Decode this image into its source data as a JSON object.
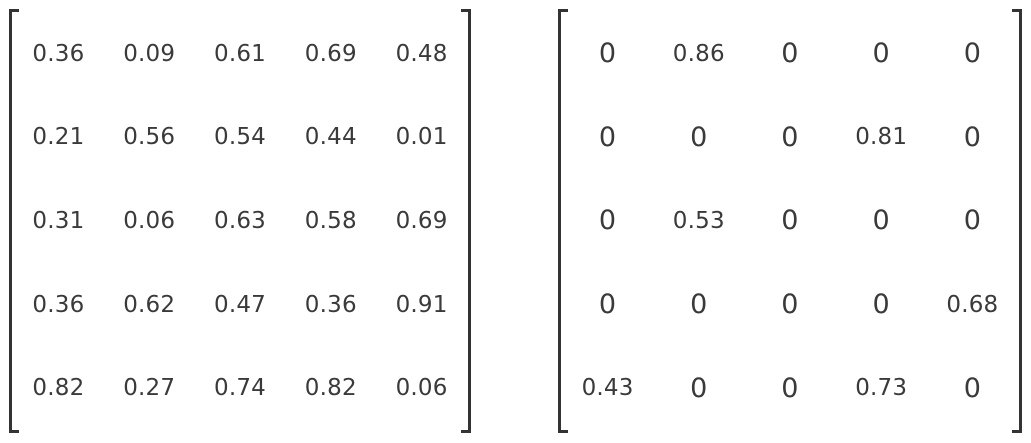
{
  "matrices": [
    {
      "rows": [
        [
          "0.36",
          "0.09",
          "0.61",
          "0.69",
          "0.48"
        ],
        [
          "0.21",
          "0.56",
          "0.54",
          "0.44",
          "0.01"
        ],
        [
          "0.31",
          "0.06",
          "0.63",
          "0.58",
          "0.69"
        ],
        [
          "0.36",
          "0.62",
          "0.47",
          "0.36",
          "0.91"
        ],
        [
          "0.82",
          "0.27",
          "0.74",
          "0.82",
          "0.06"
        ]
      ]
    },
    {
      "rows": [
        [
          "0",
          "0.86",
          "0",
          "0",
          "0"
        ],
        [
          "0",
          "0",
          "0",
          "0.81",
          "0"
        ],
        [
          "0",
          "0.53",
          "0",
          "0",
          "0"
        ],
        [
          "0",
          "0",
          "0",
          "0",
          "0.68"
        ],
        [
          "0.43",
          "0",
          "0",
          "0.73",
          "0"
        ]
      ]
    }
  ],
  "colors": {
    "text": "#3a3a3a",
    "bracket": "#333333",
    "background": "#ffffff"
  }
}
